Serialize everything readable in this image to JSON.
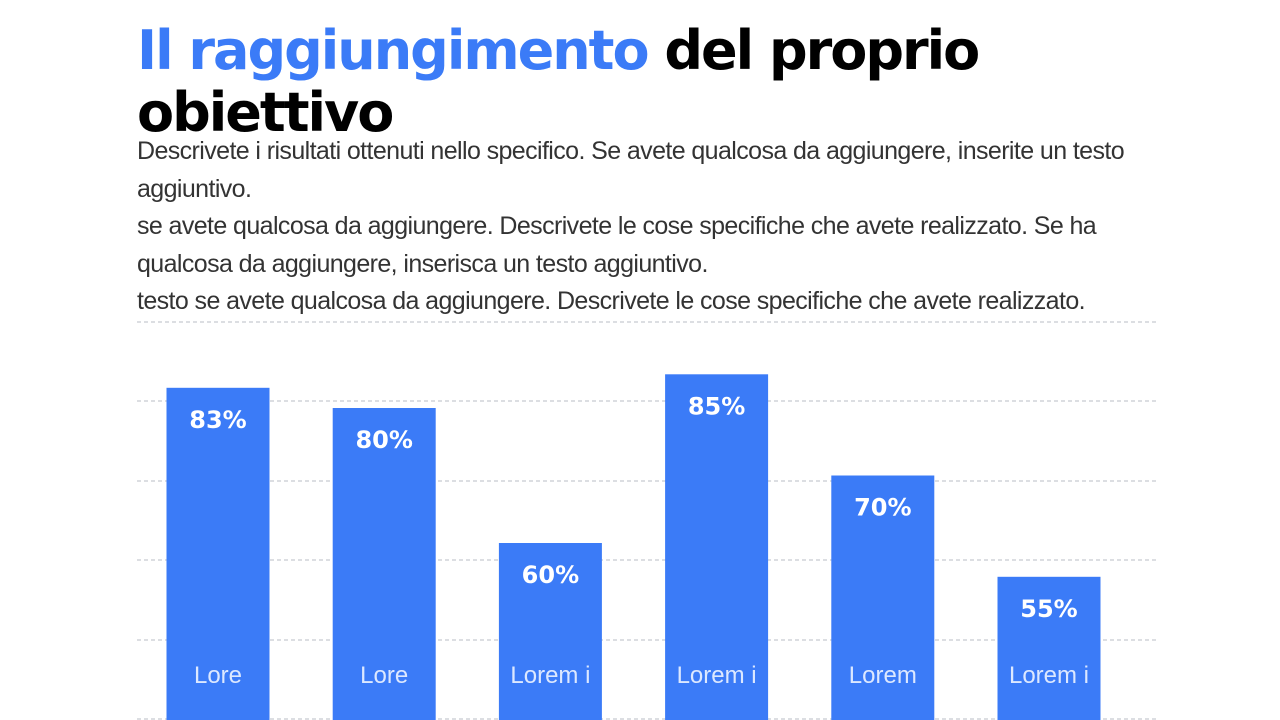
{
  "slide": {
    "title_accent": "Il raggiungimento",
    "title_rest": "del proprio obiettivo",
    "body_paragraphs": [
      "Descrivete i risultati ottenuti nello specifico. Se avete qualcosa da aggiungere, inserite un testo aggiuntivo.",
      "se avete qualcosa da aggiungere. Descrivete le cose specifiche che avete realizzato. Se ha qualcosa da aggiungere, inserisca un testo aggiuntivo.",
      "testo se avete qualcosa da aggiungere. Descrivete le cose specifiche che avete realizzato."
    ]
  },
  "colors": {
    "accent": "#3b7bf7",
    "bar": "#3b7bf7",
    "bar_label": "#ffffff",
    "category_label": "#dce8ff",
    "grid": "#b8bcc4",
    "title": "#000000",
    "body": "#333333"
  },
  "chart_data": {
    "type": "bar",
    "categories": [
      "Lore",
      "Lore",
      "Lorem i",
      "Lorem i",
      "Lorem",
      "Lorem i"
    ],
    "values": [
      83,
      80,
      60,
      85,
      70,
      55
    ],
    "value_labels": [
      "83%",
      "80%",
      "60%",
      "85%",
      "70%",
      "55%"
    ],
    "grid": true,
    "legend": "none",
    "title": "",
    "xlabel": "",
    "ylabel": ""
  }
}
